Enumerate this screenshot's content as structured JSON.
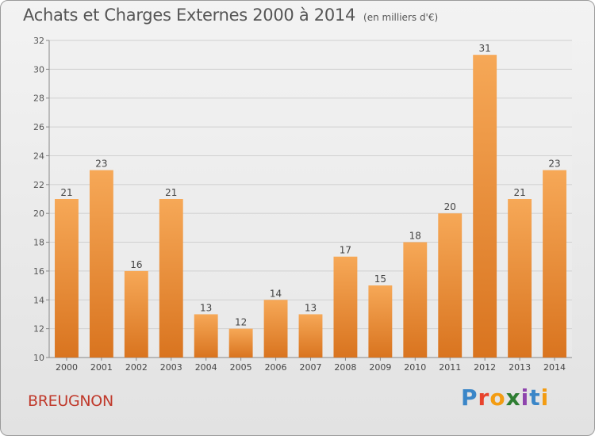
{
  "header": {
    "title": "Achats et Charges Externes 2000 à 2014",
    "subtitle": "(en milliers d'€)"
  },
  "footer": {
    "commune": "BREUGNON",
    "logo": "Proxiti"
  },
  "colors": {
    "bar_light": "#f6a857",
    "bar_dark": "#d9741f",
    "text": "#555555",
    "commune": "#c0392b"
  },
  "chart_data": {
    "type": "bar",
    "title": "Achats et Charges Externes 2000 à 2014",
    "subtitle": "(en milliers d'€)",
    "xlabel": "",
    "ylabel": "",
    "categories": [
      "2000",
      "2001",
      "2002",
      "2003",
      "2004",
      "2005",
      "2006",
      "2007",
      "2008",
      "2009",
      "2010",
      "2011",
      "2012",
      "2013",
      "2014"
    ],
    "values": [
      21,
      23,
      16,
      21,
      13,
      12,
      14,
      13,
      17,
      15,
      18,
      20,
      31,
      21,
      23
    ],
    "ylim": [
      10,
      32
    ],
    "yticks": [
      10,
      12,
      14,
      16,
      18,
      20,
      22,
      24,
      26,
      28,
      30,
      32
    ],
    "grid": true,
    "data_labels": true
  }
}
